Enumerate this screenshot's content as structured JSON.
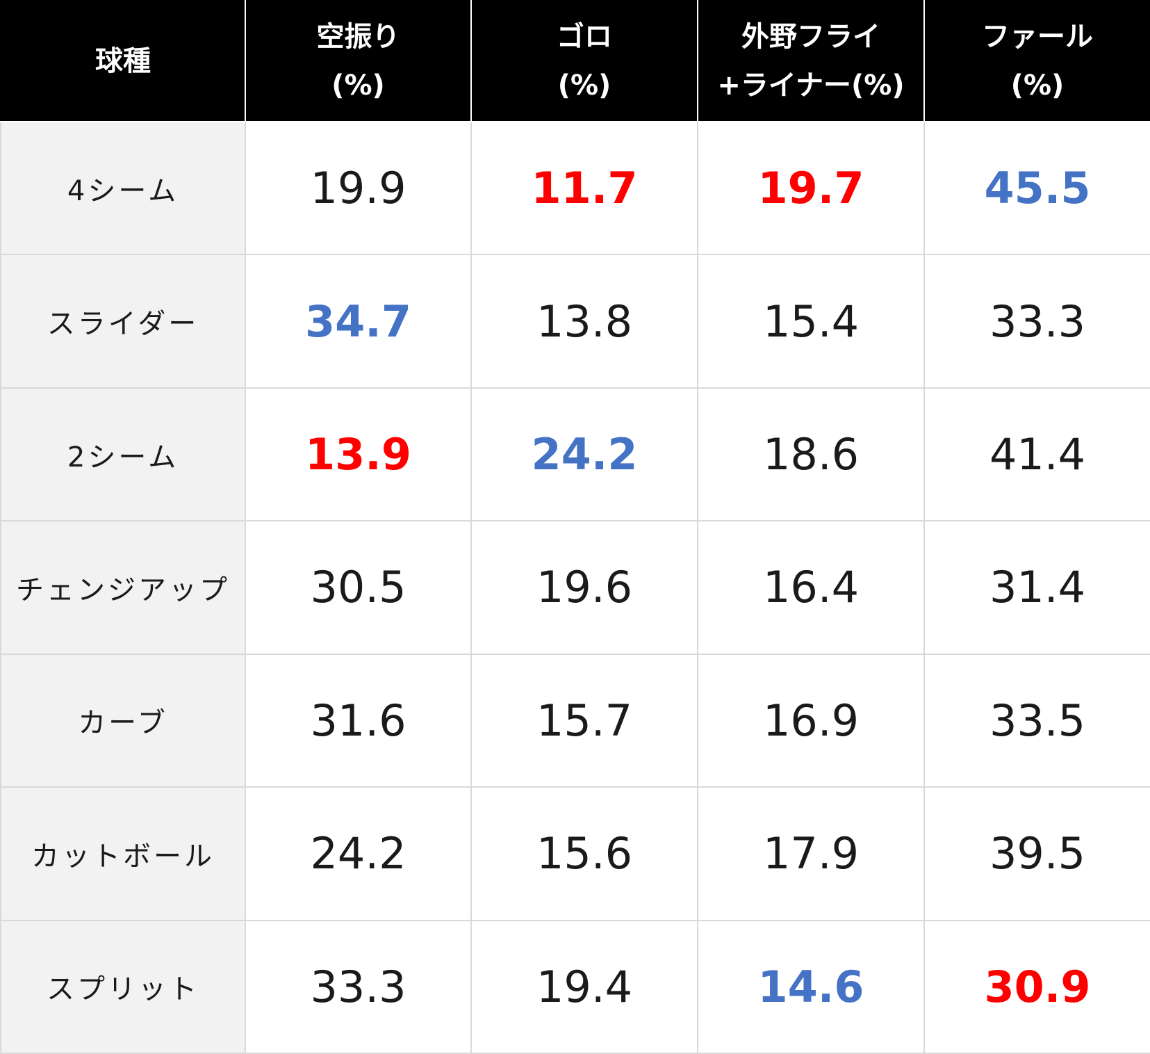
{
  "colors": {
    "high": "#ff0000",
    "low": "#4472c4",
    "normal": "#1a1a1a"
  },
  "header": {
    "col0": "球種",
    "col1_line1": "空振り",
    "col1_line2": "(%)",
    "col2_line1": "ゴロ",
    "col2_line2": "(%)",
    "col3_line1": "外野フライ",
    "col3_line2": "+ライナー(%)",
    "col4_line1": "ファール",
    "col4_line2": "(%)"
  },
  "rows": [
    {
      "label": "4シーム",
      "v1": "19.9",
      "v2": "11.7",
      "v3": "19.7",
      "v4": "45.5"
    },
    {
      "label": "スライダー",
      "v1": "34.7",
      "v2": "13.8",
      "v3": "15.4",
      "v4": "33.3"
    },
    {
      "label": "2シーム",
      "v1": "13.9",
      "v2": "24.2",
      "v3": "18.6",
      "v4": "41.4"
    },
    {
      "label": "チェンジアップ",
      "v1": "30.5",
      "v2": "19.6",
      "v3": "16.4",
      "v4": "31.4"
    },
    {
      "label": "カーブ",
      "v1": "31.6",
      "v2": "15.7",
      "v3": "16.9",
      "v4": "33.5"
    },
    {
      "label": "カットボール",
      "v1": "24.2",
      "v2": "15.6",
      "v3": "17.9",
      "v4": "39.5"
    },
    {
      "label": "スプリット",
      "v1": "33.3",
      "v2": "19.4",
      "v3": "14.6",
      "v4": "30.9"
    }
  ],
  "highlights": {
    "0": {
      "v2": "high",
      "v3": "high",
      "v4": "low"
    },
    "1": {
      "v1": "low"
    },
    "2": {
      "v1": "high",
      "v2": "low"
    },
    "6": {
      "v3": "low",
      "v4": "high"
    }
  }
}
